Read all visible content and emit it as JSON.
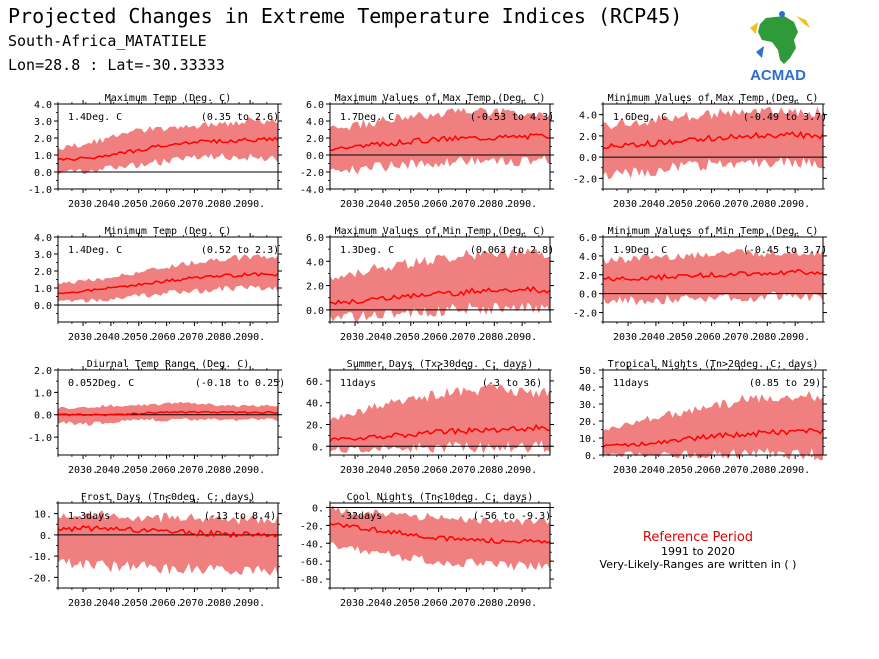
{
  "header": {
    "title": "Projected Changes in Extreme Temperature Indices (RCP45)",
    "region": "South-Africa_MATATIELE",
    "coords": "Lon=28.8 : Lat=-30.33333"
  },
  "logo": {
    "label": "ACMAD",
    "icon": "africa-map-logo"
  },
  "reference": {
    "title": "Reference Period",
    "years": "1991 to 2020",
    "note": "Very-Likely-Ranges are written in ( )"
  },
  "colors": {
    "band": "#f08080",
    "line": "#ff0000",
    "zero": "#000000"
  },
  "chart_data": [
    {
      "type": "area",
      "title": "Maximum Temp (Deg. C)",
      "value_label": "1.4Deg. C",
      "range_label": "(0.35 to 2.6)",
      "ylim": [
        -1.0,
        4.0
      ],
      "yticks": [
        -1.0,
        0.0,
        1.0,
        2.0,
        3.0,
        4.0
      ],
      "ytick_labels": [
        "-1.0",
        "0.0",
        "1.0",
        "2.0",
        "3.0",
        "4.0"
      ],
      "xlim": [
        2021,
        2100
      ],
      "xticks": [
        2030,
        2040,
        2050,
        2060,
        2070,
        2080,
        2090
      ],
      "xtick_labels": [
        "2030.",
        "2040.",
        "2050.",
        "2060.",
        "2070.",
        "2080.",
        "2090."
      ],
      "series": [
        {
          "x": [
            2021,
            2030,
            2040,
            2050,
            2060,
            2070,
            2080,
            2090,
            2100
          ],
          "median": [
            0.7,
            0.8,
            1.0,
            1.3,
            1.6,
            1.8,
            1.8,
            1.9,
            1.9
          ],
          "lower": [
            0.0,
            0.1,
            0.3,
            0.5,
            0.7,
            0.9,
            1.0,
            1.0,
            0.9
          ],
          "upper": [
            1.4,
            1.6,
            2.0,
            2.4,
            2.6,
            2.7,
            2.8,
            3.0,
            3.0
          ]
        }
      ]
    },
    {
      "type": "area",
      "title": "Maximum Values of Max Temp (Deg. C)",
      "value_label": "1.7Deg. C",
      "range_label": "(-0.53 to 4.3)",
      "ylim": [
        -4.0,
        6.0
      ],
      "yticks": [
        -4.0,
        -2.0,
        0.0,
        2.0,
        4.0,
        6.0
      ],
      "ytick_labels": [
        "-4.0",
        "-2.0",
        "0.0",
        "2.0",
        "4.0",
        "6.0"
      ],
      "xlim": [
        2021,
        2100
      ],
      "xticks": [
        2030,
        2040,
        2050,
        2060,
        2070,
        2080,
        2090
      ],
      "xtick_labels": [
        "2030.",
        "2040.",
        "2050.",
        "2060.",
        "2070.",
        "2080.",
        "2090."
      ],
      "series": [
        {
          "x": [
            2021,
            2030,
            2040,
            2050,
            2060,
            2070,
            2080,
            2090,
            2100
          ],
          "median": [
            0.8,
            1.0,
            1.3,
            1.6,
            1.9,
            2.0,
            2.1,
            2.2,
            2.3
          ],
          "lower": [
            -1.5,
            -1.5,
            -1.2,
            -0.8,
            -0.6,
            -0.5,
            -0.4,
            -0.5,
            -0.3
          ],
          "upper": [
            3.0,
            3.5,
            4.0,
            4.5,
            4.8,
            5.0,
            5.0,
            4.8,
            4.6
          ]
        }
      ]
    },
    {
      "type": "area",
      "title": "Minimum Values of Max Temp (Deg. C)",
      "value_label": "1.6Deg. C",
      "range_label": "(-0.49 to 3.7)",
      "ylim": [
        -3.0,
        5.0
      ],
      "yticks": [
        -2.0,
        0.0,
        2.0,
        4.0
      ],
      "ytick_labels": [
        "-2.0",
        "0.0",
        "2.0",
        "4.0"
      ],
      "xlim": [
        2021,
        2100
      ],
      "xticks": [
        2030,
        2040,
        2050,
        2060,
        2070,
        2080,
        2090
      ],
      "xtick_labels": [
        "2030.",
        "2040.",
        "2050.",
        "2060.",
        "2070.",
        "2080.",
        "2090."
      ],
      "series": [
        {
          "x": [
            2021,
            2030,
            2040,
            2050,
            2060,
            2070,
            2080,
            2090,
            2100
          ],
          "median": [
            1.0,
            1.1,
            1.3,
            1.6,
            1.8,
            2.0,
            2.0,
            2.1,
            2.0
          ],
          "lower": [
            -1.5,
            -1.3,
            -1.0,
            -0.7,
            -0.5,
            -0.3,
            -0.3,
            -0.4,
            -0.3
          ],
          "upper": [
            3.0,
            3.2,
            3.5,
            3.8,
            4.0,
            4.2,
            4.2,
            4.3,
            4.2
          ]
        }
      ]
    },
    {
      "type": "area",
      "title": "Minimum Temp (Deg. C)",
      "value_label": "1.4Deg. C",
      "range_label": "(0.52 to 2.3)",
      "ylim": [
        -1.0,
        4.0
      ],
      "yticks": [
        0.0,
        1.0,
        2.0,
        3.0,
        4.0
      ],
      "ytick_labels": [
        "0.0",
        "1.0",
        "2.0",
        "3.0",
        "4.0"
      ],
      "xlim": [
        2021,
        2100
      ],
      "xticks": [
        2030,
        2040,
        2050,
        2060,
        2070,
        2080,
        2090
      ],
      "xtick_labels": [
        "2030.",
        "2040.",
        "2050.",
        "2060.",
        "2070.",
        "2080.",
        "2090."
      ],
      "series": [
        {
          "x": [
            2021,
            2030,
            2040,
            2050,
            2060,
            2070,
            2080,
            2090,
            2100
          ],
          "median": [
            0.7,
            0.8,
            1.0,
            1.2,
            1.4,
            1.6,
            1.7,
            1.8,
            1.8
          ],
          "lower": [
            0.2,
            0.3,
            0.4,
            0.6,
            0.8,
            0.9,
            1.0,
            1.1,
            1.0
          ],
          "upper": [
            1.2,
            1.4,
            1.6,
            1.9,
            2.2,
            2.5,
            2.7,
            2.8,
            2.8
          ]
        }
      ]
    },
    {
      "type": "area",
      "title": "Maximum Values of Min Temp (Deg. C)",
      "value_label": "1.3Deg. C",
      "range_label": "(0.063 to 2.8)",
      "ylim": [
        -1.0,
        6.0
      ],
      "yticks": [
        0.0,
        2.0,
        4.0,
        6.0
      ],
      "ytick_labels": [
        "0.0",
        "2.0",
        "4.0",
        "6.0"
      ],
      "xlim": [
        2021,
        2100
      ],
      "xticks": [
        2030,
        2040,
        2050,
        2060,
        2070,
        2080,
        2090
      ],
      "xtick_labels": [
        "2030.",
        "2040.",
        "2050.",
        "2060.",
        "2070.",
        "2080.",
        "2090."
      ],
      "series": [
        {
          "x": [
            2021,
            2030,
            2040,
            2050,
            2060,
            2070,
            2080,
            2090,
            2100
          ],
          "median": [
            0.6,
            0.7,
            0.9,
            1.1,
            1.3,
            1.5,
            1.6,
            1.7,
            1.6
          ],
          "lower": [
            -0.5,
            -0.4,
            -0.2,
            0.0,
            0.1,
            0.3,
            0.3,
            0.4,
            0.3
          ],
          "upper": [
            2.5,
            3.0,
            3.5,
            3.8,
            4.2,
            4.5,
            4.6,
            4.6,
            4.5
          ]
        }
      ]
    },
    {
      "type": "area",
      "title": "Minimum Values of Min Temp (Deg. C)",
      "value_label": "1.9Deg. C",
      "range_label": "(-0.45 to 3.7)",
      "ylim": [
        -3.0,
        6.0
      ],
      "yticks": [
        -2.0,
        0.0,
        2.0,
        4.0,
        6.0
      ],
      "ytick_labels": [
        "-2.0",
        "0.0",
        "2.0",
        "4.0",
        "6.0"
      ],
      "xlim": [
        2021,
        2100
      ],
      "xticks": [
        2030,
        2040,
        2050,
        2060,
        2070,
        2080,
        2090
      ],
      "xtick_labels": [
        "2030.",
        "2040.",
        "2050.",
        "2060.",
        "2070.",
        "2080.",
        "2090."
      ],
      "series": [
        {
          "x": [
            2021,
            2030,
            2040,
            2050,
            2060,
            2070,
            2080,
            2090,
            2100
          ],
          "median": [
            1.5,
            1.6,
            1.7,
            1.9,
            2.0,
            2.1,
            2.2,
            2.3,
            2.3
          ],
          "lower": [
            -0.5,
            -0.6,
            -0.5,
            -0.3,
            -0.2,
            -0.2,
            -0.1,
            -0.2,
            -0.1
          ],
          "upper": [
            3.5,
            3.6,
            3.8,
            4.0,
            4.2,
            4.3,
            4.3,
            4.4,
            4.3
          ]
        }
      ]
    },
    {
      "type": "area",
      "title": "Diurnal Temp Range (Deg. C)",
      "value_label": "0.052Deg. C",
      "range_label": "(-0.18 to 0.25)",
      "ylim": [
        -1.8,
        2.0
      ],
      "yticks": [
        -1.0,
        0.0,
        1.0,
        2.0
      ],
      "ytick_labels": [
        "-1.0",
        "0.0",
        "1.0",
        "2.0"
      ],
      "xlim": [
        2021,
        2100
      ],
      "xticks": [
        2030,
        2040,
        2050,
        2060,
        2070,
        2080,
        2090
      ],
      "xtick_labels": [
        "2030.",
        "2040.",
        "2050.",
        "2060.",
        "2070.",
        "2080.",
        "2090."
      ],
      "series": [
        {
          "x": [
            2021,
            2030,
            2040,
            2050,
            2060,
            2070,
            2080,
            2090,
            2100
          ],
          "median": [
            0.0,
            0.0,
            0.0,
            0.05,
            0.1,
            0.1,
            0.1,
            0.1,
            0.1
          ],
          "lower": [
            -0.3,
            -0.4,
            -0.3,
            -0.2,
            -0.2,
            -0.2,
            -0.2,
            -0.2,
            -0.2
          ],
          "upper": [
            0.3,
            0.3,
            0.4,
            0.4,
            0.5,
            0.5,
            0.4,
            0.4,
            0.4
          ]
        }
      ]
    },
    {
      "type": "area",
      "title": "Summer Days (Tx>30deg. C; days)",
      "value_label": "11days",
      "range_label": "(-3 to 36)",
      "ylim": [
        -8,
        70
      ],
      "yticks": [
        0,
        20,
        40,
        60
      ],
      "ytick_labels": [
        "0.",
        "20.",
        "40.",
        "60."
      ],
      "xlim": [
        2021,
        2100
      ],
      "xticks": [
        2030,
        2040,
        2050,
        2060,
        2070,
        2080,
        2090
      ],
      "xtick_labels": [
        "2030.",
        "2040.",
        "2050.",
        "2060.",
        "2070.",
        "2080.",
        "2090."
      ],
      "series": [
        {
          "x": [
            2021,
            2030,
            2040,
            2050,
            2060,
            2070,
            2080,
            2090,
            2100
          ],
          "median": [
            6,
            7,
            9,
            11,
            13,
            14,
            15,
            16,
            17
          ],
          "lower": [
            -2,
            -2,
            -1,
            0,
            1,
            1,
            2,
            2,
            2
          ],
          "upper": [
            25,
            30,
            38,
            42,
            48,
            50,
            52,
            50,
            48
          ]
        }
      ]
    },
    {
      "type": "area",
      "title": "Tropical Nights (Tn>20deg. C; days)",
      "value_label": "11days",
      "range_label": "(0.85 to 29)",
      "ylim": [
        0,
        50
      ],
      "yticks": [
        0,
        10,
        20,
        30,
        40,
        50
      ],
      "ytick_labels": [
        "0.",
        "10.",
        "20.",
        "30.",
        "40.",
        "50."
      ],
      "xlim": [
        2021,
        2100
      ],
      "xticks": [
        2030,
        2040,
        2050,
        2060,
        2070,
        2080,
        2090
      ],
      "xtick_labels": [
        "2030.",
        "2040.",
        "2050.",
        "2060.",
        "2070.",
        "2080.",
        "2090."
      ],
      "series": [
        {
          "x": [
            2021,
            2030,
            2040,
            2050,
            2060,
            2070,
            2080,
            2090,
            2100
          ],
          "median": [
            5,
            6,
            7,
            9,
            11,
            12,
            13,
            14,
            14
          ],
          "lower": [
            1,
            1,
            1,
            1.5,
            2,
            2,
            2,
            2,
            2
          ],
          "upper": [
            15,
            18,
            22,
            25,
            28,
            32,
            34,
            35,
            34
          ]
        }
      ]
    },
    {
      "type": "area",
      "title": "Frost Days (Tn<0deg. C; days)",
      "value_label": "1.3days",
      "range_label": "(-13 to 8.4)",
      "ylim": [
        -25,
        15
      ],
      "yticks": [
        -20,
        -10,
        0,
        10
      ],
      "ytick_labels": [
        "-20.",
        "-10.",
        "0.",
        "10."
      ],
      "xlim": [
        2021,
        2100
      ],
      "xticks": [
        2030,
        2040,
        2050,
        2060,
        2070,
        2080,
        2090
      ],
      "xtick_labels": [
        "2030.",
        "2040.",
        "2050.",
        "2060.",
        "2070.",
        "2080.",
        "2090."
      ],
      "series": [
        {
          "x": [
            2021,
            2030,
            2040,
            2050,
            2060,
            2070,
            2080,
            2090,
            2100
          ],
          "median": [
            3,
            3,
            2.5,
            2,
            1.5,
            1,
            0.5,
            0,
            0
          ],
          "lower": [
            -12,
            -13,
            -14,
            -14,
            -15,
            -15,
            -15,
            -16,
            -16
          ],
          "upper": [
            9,
            9,
            9,
            8.5,
            8,
            8,
            7.5,
            7,
            7
          ]
        }
      ]
    },
    {
      "type": "area",
      "title": "Cool Nights (Tn<10deg. C; days)",
      "value_label": "-32days",
      "range_label": "(-56 to -9.3)",
      "ylim": [
        -90,
        5
      ],
      "yticks": [
        -80,
        -60,
        -40,
        -20,
        0
      ],
      "ytick_labels": [
        "-80.",
        "-60.",
        "-40.",
        "-20.",
        "0."
      ],
      "xlim": [
        2021,
        2100
      ],
      "xticks": [
        2030,
        2040,
        2050,
        2060,
        2070,
        2080,
        2090
      ],
      "xtick_labels": [
        "2030.",
        "2040.",
        "2050.",
        "2060.",
        "2070.",
        "2080.",
        "2090."
      ],
      "series": [
        {
          "x": [
            2021,
            2030,
            2040,
            2050,
            2060,
            2070,
            2080,
            2090,
            2100
          ],
          "median": [
            -18,
            -22,
            -26,
            -30,
            -34,
            -36,
            -37,
            -38,
            -38
          ],
          "lower": [
            -40,
            -45,
            -50,
            -55,
            -58,
            -60,
            -62,
            -63,
            -63
          ],
          "upper": [
            -2,
            -5,
            -8,
            -10,
            -12,
            -14,
            -15,
            -16,
            -16
          ]
        }
      ]
    }
  ]
}
